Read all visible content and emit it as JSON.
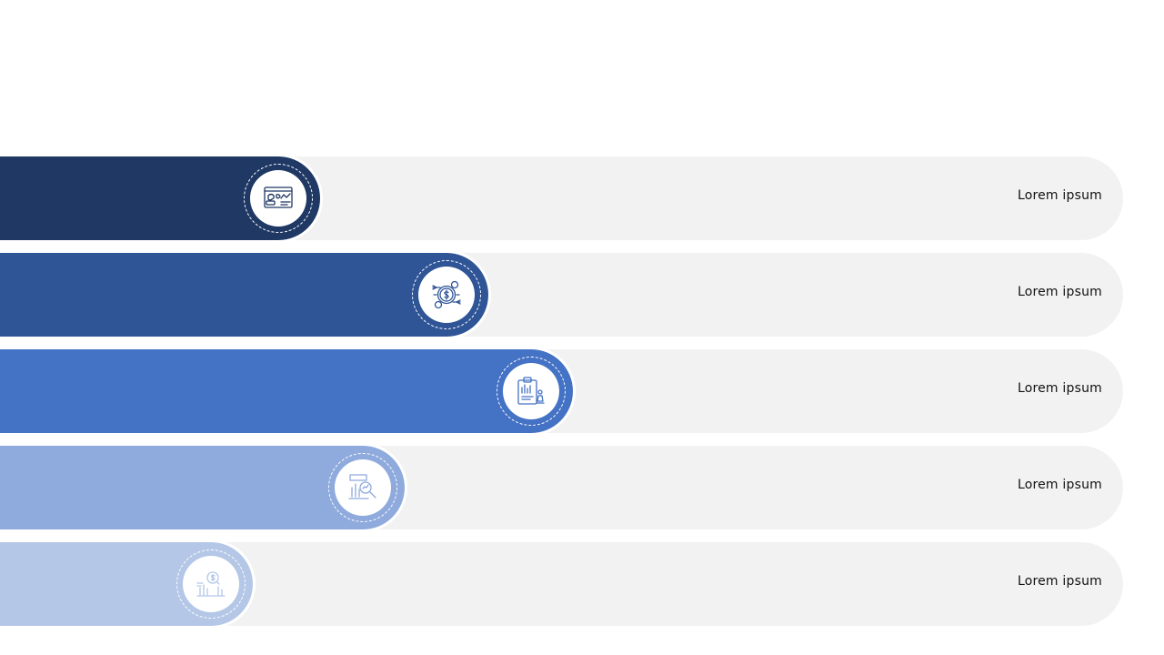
{
  "items": [
    {
      "label": "Lorem ipsum",
      "icon": "world-map-chart-icon",
      "color": "#1f3864",
      "fill": 0.285
    },
    {
      "label": "Lorem ipsum",
      "icon": "money-exchange-icon",
      "color": "#2f5597",
      "fill": 0.435
    },
    {
      "label": "Lorem ipsum",
      "icon": "clipboard-chess-icon",
      "color": "#4472c4",
      "fill": 0.51
    },
    {
      "label": "Lorem ipsum",
      "icon": "magnify-chart-icon",
      "color": "#8faadc",
      "fill": 0.36
    },
    {
      "label": "Lorem ipsum",
      "icon": "dollar-search-chart-icon",
      "color": "#b4c7e7",
      "fill": 0.225
    }
  ]
}
